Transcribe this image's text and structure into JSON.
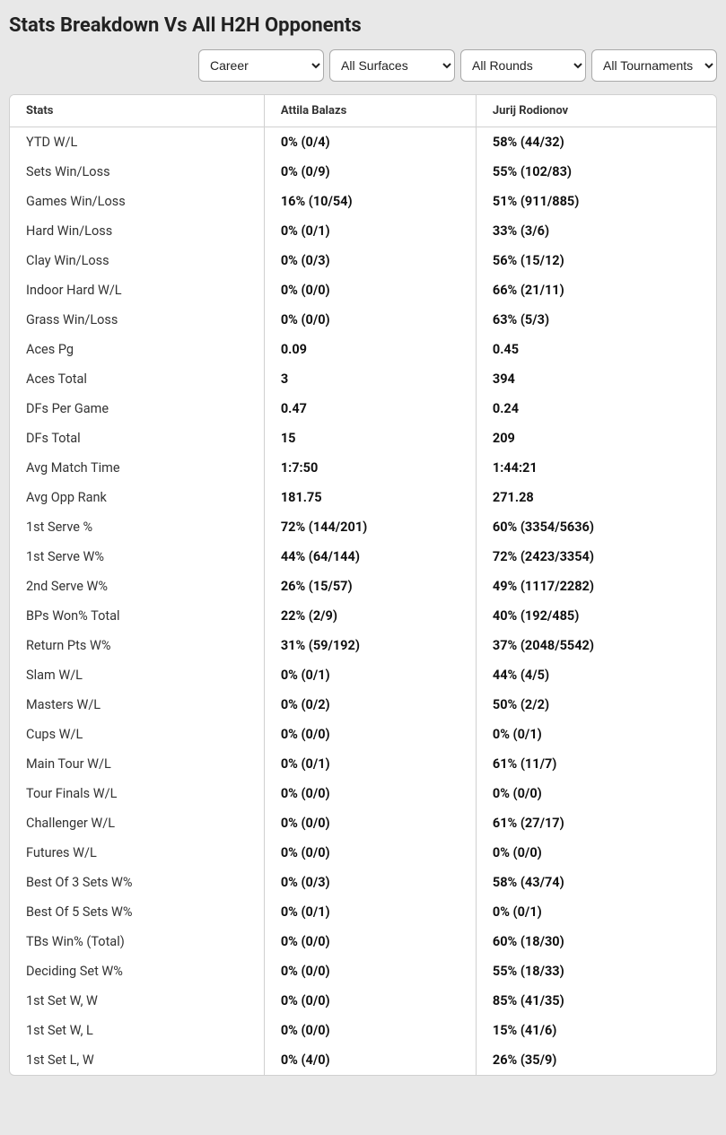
{
  "title": "Stats Breakdown Vs All H2H Opponents",
  "filters": {
    "period": {
      "selected": "Career",
      "options": [
        "Career"
      ]
    },
    "surface": {
      "selected": "All Surfaces",
      "options": [
        "All Surfaces"
      ]
    },
    "round": {
      "selected": "All Rounds",
      "options": [
        "All Rounds"
      ]
    },
    "tournament": {
      "selected": "All Tournaments",
      "options": [
        "All Tournaments"
      ]
    }
  },
  "columns": {
    "stats": "Stats",
    "player1": "Attila Balazs",
    "player2": "Jurij Rodionov"
  },
  "rows": [
    {
      "label": "YTD W/L",
      "p1": "0% (0/4)",
      "p2": "58% (44/32)"
    },
    {
      "label": "Sets Win/Loss",
      "p1": "0% (0/9)",
      "p2": "55% (102/83)"
    },
    {
      "label": "Games Win/Loss",
      "p1": "16% (10/54)",
      "p2": "51% (911/885)"
    },
    {
      "label": "Hard Win/Loss",
      "p1": "0% (0/1)",
      "p2": "33% (3/6)"
    },
    {
      "label": "Clay Win/Loss",
      "p1": "0% (0/3)",
      "p2": "56% (15/12)"
    },
    {
      "label": "Indoor Hard W/L",
      "p1": "0% (0/0)",
      "p2": "66% (21/11)"
    },
    {
      "label": "Grass Win/Loss",
      "p1": "0% (0/0)",
      "p2": "63% (5/3)"
    },
    {
      "label": "Aces Pg",
      "p1": "0.09",
      "p2": "0.45"
    },
    {
      "label": "Aces Total",
      "p1": "3",
      "p2": "394"
    },
    {
      "label": "DFs Per Game",
      "p1": "0.47",
      "p2": "0.24"
    },
    {
      "label": "DFs Total",
      "p1": "15",
      "p2": "209"
    },
    {
      "label": "Avg Match Time",
      "p1": "1:7:50",
      "p2": "1:44:21"
    },
    {
      "label": "Avg Opp Rank",
      "p1": "181.75",
      "p2": "271.28"
    },
    {
      "label": "1st Serve %",
      "p1": "72% (144/201)",
      "p2": "60% (3354/5636)"
    },
    {
      "label": "1st Serve W%",
      "p1": "44% (64/144)",
      "p2": "72% (2423/3354)"
    },
    {
      "label": "2nd Serve W%",
      "p1": "26% (15/57)",
      "p2": "49% (1117/2282)"
    },
    {
      "label": "BPs Won% Total",
      "p1": "22% (2/9)",
      "p2": "40% (192/485)"
    },
    {
      "label": "Return Pts W%",
      "p1": "31% (59/192)",
      "p2": "37% (2048/5542)"
    },
    {
      "label": "Slam W/L",
      "p1": "0% (0/1)",
      "p2": "44% (4/5)"
    },
    {
      "label": "Masters W/L",
      "p1": "0% (0/2)",
      "p2": "50% (2/2)"
    },
    {
      "label": "Cups W/L",
      "p1": "0% (0/0)",
      "p2": "0% (0/1)"
    },
    {
      "label": "Main Tour W/L",
      "p1": "0% (0/1)",
      "p2": "61% (11/7)"
    },
    {
      "label": "Tour Finals W/L",
      "p1": "0% (0/0)",
      "p2": "0% (0/0)"
    },
    {
      "label": "Challenger W/L",
      "p1": "0% (0/0)",
      "p2": "61% (27/17)"
    },
    {
      "label": "Futures W/L",
      "p1": "0% (0/0)",
      "p2": "0% (0/0)"
    },
    {
      "label": "Best Of 3 Sets W%",
      "p1": "0% (0/3)",
      "p2": "58% (43/74)"
    },
    {
      "label": "Best Of 5 Sets W%",
      "p1": "0% (0/1)",
      "p2": "0% (0/1)"
    },
    {
      "label": "TBs Win% (Total)",
      "p1": "0% (0/0)",
      "p2": "60% (18/30)"
    },
    {
      "label": "Deciding Set W%",
      "p1": "0% (0/0)",
      "p2": "55% (18/33)"
    },
    {
      "label": "1st Set W, W",
      "p1": "0% (0/0)",
      "p2": "85% (41/35)"
    },
    {
      "label": "1st Set W, L",
      "p1": "0% (0/0)",
      "p2": "15% (41/6)"
    },
    {
      "label": "1st Set L, W",
      "p1": "0% (4/0)",
      "p2": "26% (35/9)"
    }
  ]
}
